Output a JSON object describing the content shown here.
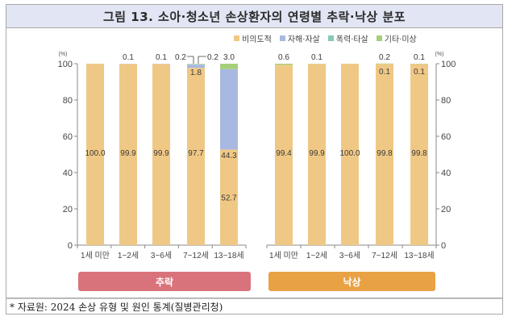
{
  "title": "그림 13. 소아·청소년 손상환자의 연령별 추락·낙상 분포",
  "legend": [
    {
      "label": "비의도적",
      "color": "#f0c885"
    },
    {
      "label": "자해·자살",
      "color": "#a9b8e0"
    },
    {
      "label": "폭력·타살",
      "color": "#86c8b8"
    },
    {
      "label": "기타·미상",
      "color": "#a6cf7a"
    }
  ],
  "unit_label": "(%)",
  "panels": {
    "left_label": "추락",
    "left_color": "#d9737b",
    "right_label": "낙상",
    "right_color": "#e8a244"
  },
  "source": "* 자료원: 2024 손상 유형 및 원인 통계(질병관리청)",
  "chart_data": [
    {
      "type": "bar",
      "stacked": true,
      "title": "추락",
      "categories": [
        "1세 미만",
        "1~2세",
        "3~6세",
        "7~12세",
        "13~18세"
      ],
      "series": [
        {
          "name": "비의도적",
          "values": [
            100.0,
            99.9,
            99.9,
            97.7,
            52.7
          ]
        },
        {
          "name": "자해·자살",
          "values": [
            0,
            0.1,
            0.1,
            1.8,
            44.3
          ]
        },
        {
          "name": "폭력·타살",
          "values": [
            0,
            0,
            0,
            0.2,
            0
          ]
        },
        {
          "name": "기타·미상",
          "values": [
            0,
            0,
            0,
            0.2,
            3.0
          ]
        }
      ],
      "top_labels": [
        "",
        "0.1",
        "0.1",
        "0.2 / 0.2",
        "3.0"
      ],
      "ylabel": "(%)",
      "yticks": [
        0,
        20,
        40,
        60,
        80,
        100
      ],
      "ylim": [
        0,
        100
      ],
      "axis_side": "left"
    },
    {
      "type": "bar",
      "stacked": true,
      "title": "낙상",
      "categories": [
        "1세 미만",
        "1~2세",
        "3~6세",
        "7~12세",
        "13~18세"
      ],
      "series": [
        {
          "name": "비의도적",
          "values": [
            99.4,
            99.9,
            100.0,
            99.8,
            99.8
          ]
        },
        {
          "name": "자해·자살",
          "values": [
            0,
            0,
            0,
            0,
            0
          ]
        },
        {
          "name": "폭력·타살",
          "values": [
            0,
            0,
            0,
            0.1,
            0.1
          ]
        },
        {
          "name": "기타·미상",
          "values": [
            0.6,
            0.1,
            0,
            0.2,
            0.1
          ]
        }
      ],
      "top_labels": [
        "0.6",
        "0.1",
        "",
        "0.2",
        "0.1"
      ],
      "ylabel": "(%)",
      "yticks": [
        0,
        20,
        40,
        60,
        80,
        100
      ],
      "ylim": [
        0,
        100
      ],
      "axis_side": "right"
    }
  ]
}
